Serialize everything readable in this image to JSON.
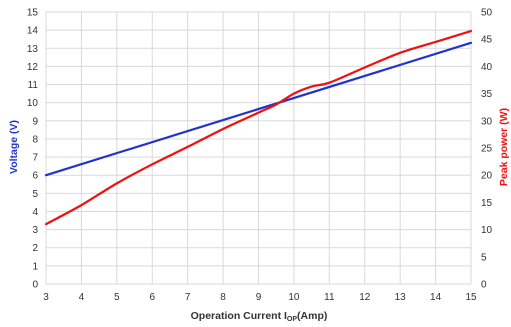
{
  "chart_data": {
    "type": "line",
    "title": "",
    "xlabel": {
      "main": "Operation Current I",
      "subscript": "OP",
      "suffix": "(Amp)"
    },
    "ylabel_left": "Voltage (V)",
    "ylabel_right": "Peak power (W)",
    "x_ticks": [
      "3",
      "4",
      "5",
      "6",
      "7",
      "8",
      "9",
      "10",
      "11",
      "12",
      "13",
      "14",
      "15"
    ],
    "y_left_ticks": [
      "0",
      "1",
      "2",
      "3",
      "4",
      "5",
      "6",
      "7",
      "8",
      "9",
      "10",
      "11",
      "12",
      "13",
      "14",
      "15"
    ],
    "y_right_ticks": [
      "0",
      "5",
      "10",
      "15",
      "20",
      "25",
      "30",
      "35",
      "40",
      "45",
      "50"
    ],
    "xlim": [
      3,
      15
    ],
    "ylim_left": [
      0,
      15
    ],
    "ylim_right": [
      0,
      50
    ],
    "grid": true,
    "legend": "none",
    "series": [
      {
        "axis": "left",
        "color": "#2233cc",
        "x": [
          3,
          15
        ],
        "values": [
          6.0,
          13.3
        ]
      },
      {
        "axis": "right",
        "color": "#ee1111",
        "x": [
          3,
          4,
          5,
          6,
          7,
          8,
          9,
          9.5,
          10,
          10.5,
          11,
          12,
          13,
          14,
          15
        ],
        "values": [
          11.0,
          14.5,
          18.5,
          22.0,
          25.2,
          28.5,
          31.5,
          33.0,
          35.0,
          36.3,
          37.0,
          39.8,
          42.5,
          44.5,
          46.5
        ]
      }
    ]
  }
}
